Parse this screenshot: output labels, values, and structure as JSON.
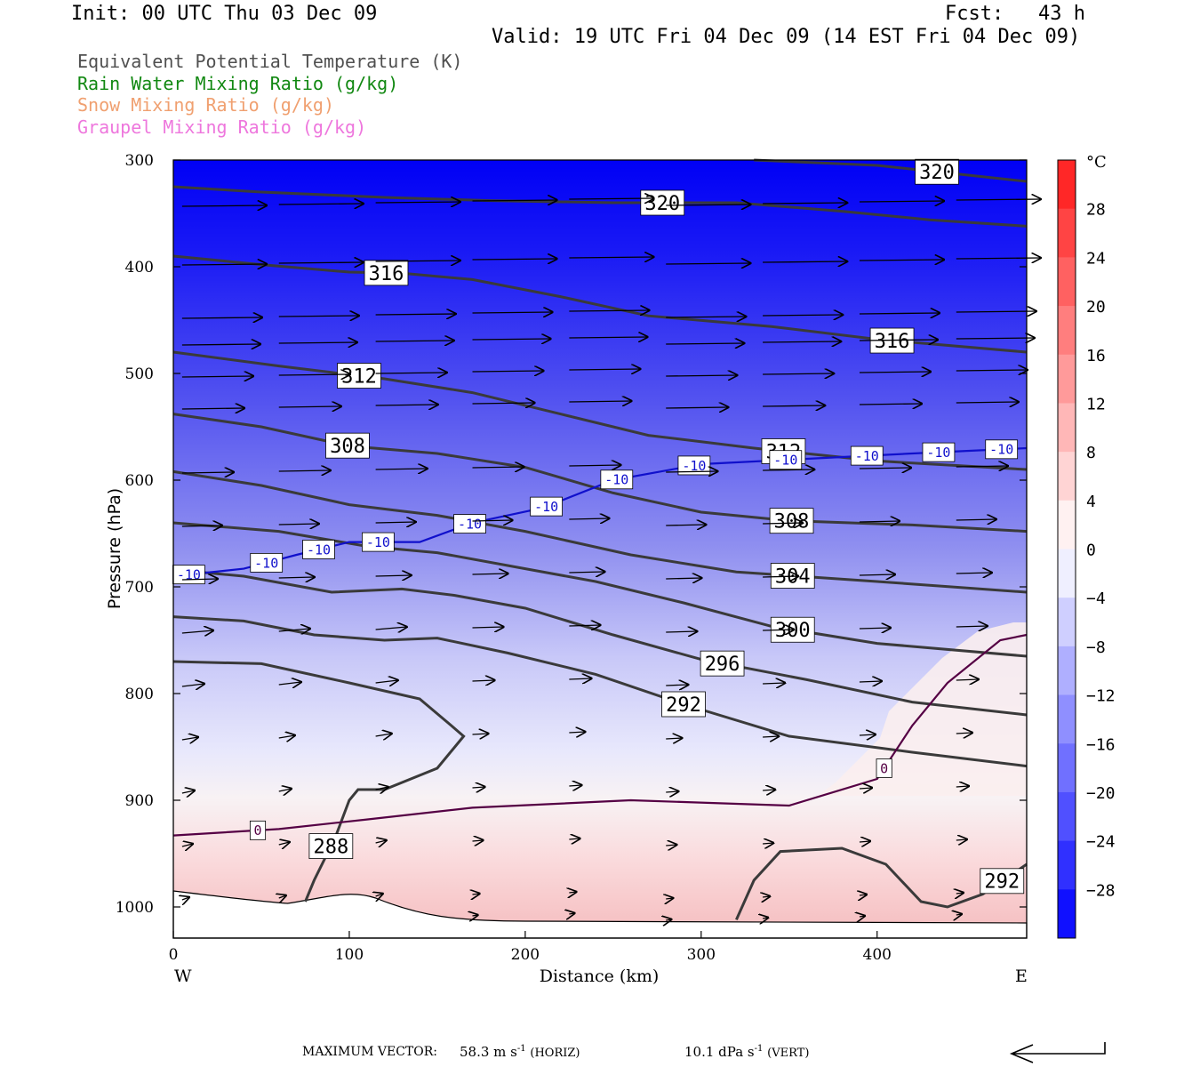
{
  "header": {
    "init": "Init: 00 UTC Thu 03 Dec 09",
    "fcst_label": "Fcst:",
    "fcst_value": "43 h",
    "valid": "Valid: 19 UTC Fri 04 Dec 09 (14 EST Fri 04 Dec 09)"
  },
  "legend": {
    "items": [
      {
        "label": "Equivalent Potential Temperature (K)",
        "color": "#505050"
      },
      {
        "label": "Rain Water Mixing Ratio (g/kg)",
        "color": "#118811"
      },
      {
        "label": "Snow Mixing Ratio (g/kg)",
        "color": "#f0a070"
      },
      {
        "label": "Graupel Mixing Ratio (g/kg)",
        "color": "#ee77dd"
      }
    ]
  },
  "colorbar": {
    "unit": "°C",
    "ticks": [
      "28",
      "24",
      "20",
      "16",
      "12",
      "8",
      "4",
      "0",
      "−4",
      "−8",
      "−12",
      "−16",
      "−20",
      "−24",
      "−28"
    ],
    "warm_color": "#ff1a1a",
    "cold_color": "#0000ff"
  },
  "footer": {
    "max_vector_label": "MAXIMUM VECTOR:",
    "horiz_value": "58.3 m s",
    "horiz_exp": "-1",
    "horiz_tag": "(HORIZ)",
    "vert_value": "10.1 dPa s",
    "vert_exp": "-1",
    "vert_tag": "(VERT)"
  },
  "chart_data": {
    "type": "cross-section",
    "xlabel": "Distance (km)",
    "ylabel": "Pressure (hPa)",
    "x_ticks": [
      0,
      100,
      200,
      300,
      400
    ],
    "y_ticks": [
      300,
      400,
      500,
      600,
      700,
      800,
      900,
      1000
    ],
    "xlim": [
      0,
      485
    ],
    "ylim": [
      300,
      1030
    ],
    "left_end_label": "W",
    "right_end_label": "E",
    "shaded_field": "temperature (°C)",
    "theta_e_contours": [
      {
        "label": "320",
        "points": [
          [
            0,
            325
          ],
          [
            50,
            330
          ],
          [
            120,
            335
          ],
          [
            180,
            338
          ],
          [
            250,
            340
          ],
          [
            320,
            340
          ],
          [
            380,
            348
          ],
          [
            430,
            356
          ],
          [
            485,
            362
          ]
        ]
      },
      {
        "label": "320",
        "points": [
          [
            330,
            300
          ],
          [
            400,
            305
          ],
          [
            485,
            320
          ]
        ]
      },
      {
        "label": "316",
        "points": [
          [
            0,
            390
          ],
          [
            50,
            398
          ],
          [
            100,
            405
          ],
          [
            130,
            406
          ],
          [
            170,
            412
          ],
          [
            220,
            428
          ],
          [
            270,
            446
          ],
          [
            340,
            456
          ],
          [
            400,
            468
          ],
          [
            485,
            480
          ]
        ]
      },
      {
        "label": "312",
        "points": [
          [
            0,
            480
          ],
          [
            60,
            493
          ],
          [
            120,
            505
          ],
          [
            170,
            518
          ],
          [
            220,
            538
          ],
          [
            270,
            558
          ],
          [
            330,
            570
          ],
          [
            400,
            582
          ],
          [
            485,
            590
          ]
        ]
      },
      {
        "label": "308",
        "points": [
          [
            0,
            538
          ],
          [
            50,
            550
          ],
          [
            100,
            568
          ],
          [
            150,
            575
          ],
          [
            200,
            588
          ],
          [
            250,
            612
          ],
          [
            300,
            630
          ],
          [
            350,
            638
          ],
          [
            420,
            642
          ],
          [
            485,
            648
          ]
        ]
      },
      {
        "label": "304",
        "points": [
          [
            0,
            592
          ],
          [
            50,
            605
          ],
          [
            100,
            623
          ],
          [
            150,
            633
          ],
          [
            200,
            648
          ],
          [
            260,
            670
          ],
          [
            320,
            686
          ],
          [
            400,
            695
          ],
          [
            485,
            705
          ]
        ]
      },
      {
        "label": "300",
        "points": [
          [
            0,
            640
          ],
          [
            60,
            648
          ],
          [
            110,
            662
          ],
          [
            150,
            668
          ],
          [
            190,
            680
          ],
          [
            240,
            695
          ],
          [
            290,
            715
          ],
          [
            340,
            737
          ],
          [
            400,
            753
          ],
          [
            485,
            765
          ]
        ]
      },
      {
        "label": "296",
        "points": [
          [
            0,
            684
          ],
          [
            40,
            690
          ],
          [
            90,
            705
          ],
          [
            130,
            702
          ],
          [
            160,
            708
          ],
          [
            200,
            720
          ],
          [
            250,
            745
          ],
          [
            300,
            768
          ],
          [
            360,
            787
          ],
          [
            420,
            808
          ],
          [
            485,
            820
          ]
        ]
      },
      {
        "label": "292",
        "points": [
          [
            0,
            728
          ],
          [
            40,
            732
          ],
          [
            80,
            745
          ],
          [
            120,
            750
          ],
          [
            150,
            748
          ],
          [
            190,
            762
          ],
          [
            240,
            782
          ],
          [
            290,
            810
          ],
          [
            350,
            840
          ],
          [
            420,
            855
          ],
          [
            485,
            868
          ]
        ]
      },
      {
        "label": "292",
        "points": [
          [
            320,
            1012
          ],
          [
            330,
            975
          ],
          [
            345,
            948
          ],
          [
            380,
            945
          ],
          [
            405,
            960
          ],
          [
            425,
            995
          ],
          [
            440,
            1000
          ],
          [
            460,
            988
          ],
          [
            485,
            960
          ]
        ]
      },
      {
        "label": "288",
        "points": [
          [
            0,
            770
          ],
          [
            50,
            772
          ],
          [
            100,
            790
          ],
          [
            140,
            805
          ],
          [
            158,
            830
          ],
          [
            165,
            840
          ],
          [
            150,
            870
          ],
          [
            120,
            890
          ],
          [
            105,
            890
          ],
          [
            100,
            900
          ],
          [
            92,
            935
          ],
          [
            80,
            975
          ],
          [
            75,
            995
          ]
        ]
      }
    ],
    "isotherm_contours": [
      {
        "label": "-10",
        "points": [
          [
            0,
            690
          ],
          [
            40,
            683
          ],
          [
            70,
            670
          ],
          [
            100,
            658
          ],
          [
            140,
            658
          ],
          [
            170,
            640
          ],
          [
            210,
            626
          ],
          [
            250,
            600
          ],
          [
            300,
            585
          ],
          [
            360,
            580
          ],
          [
            420,
            575
          ],
          [
            485,
            570
          ]
        ]
      },
      {
        "label": "0",
        "points": [
          [
            0,
            933
          ],
          [
            60,
            927
          ],
          [
            110,
            918
          ],
          [
            170,
            907
          ],
          [
            260,
            900
          ],
          [
            350,
            905
          ],
          [
            400,
            880
          ],
          [
            420,
            830
          ],
          [
            440,
            790
          ],
          [
            470,
            750
          ],
          [
            485,
            745
          ]
        ]
      }
    ],
    "colorbar_range": [
      -32,
      32
    ],
    "colorbar_interval": 4
  }
}
